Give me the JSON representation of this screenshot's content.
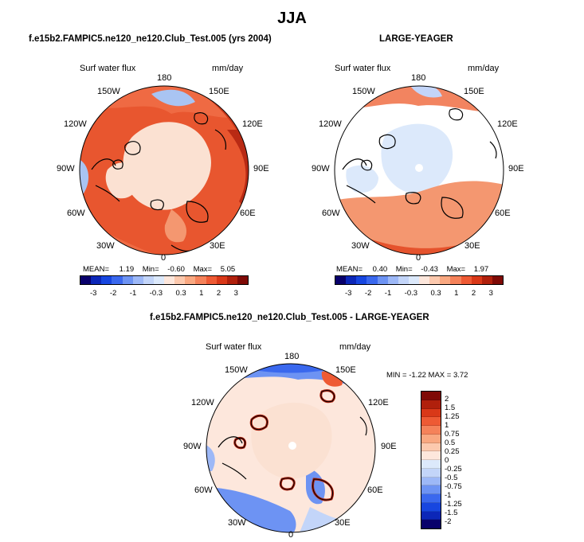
{
  "title": "JJA",
  "colors": {
    "scale": [
      "#08006b",
      "#0c27b8",
      "#1746e0",
      "#3a68ee",
      "#6d93f3",
      "#9db8f7",
      "#c3d5f9",
      "#dce9fb",
      "#fde7dc",
      "#fcc9ae",
      "#f9a881",
      "#f5825a",
      "#ee5a34",
      "#d93818",
      "#b0200c",
      "#7f0a06"
    ],
    "ocean_light": "#fbe1d2",
    "land_red": "#e2502a"
  },
  "panel_left": {
    "title": "f.e15b2.FAMPIC5.ne120_ne120.Club_Test.005 (yrs 2004)",
    "variable": "Surf water flux",
    "units": "mm/day",
    "stats": {
      "mean_label": "MEAN=",
      "mean": "1.19",
      "min_label": "Min=",
      "min": "-0.60",
      "max_label": "Max=",
      "max": "5.05"
    }
  },
  "panel_right": {
    "title": "LARGE-YEAGER",
    "variable": "Surf water flux",
    "units": "mm/day",
    "stats": {
      "mean_label": "MEAN=",
      "mean": "0.40",
      "min_label": "Min=",
      "min": "-0.43",
      "max_label": "Max=",
      "max": "1.97"
    }
  },
  "colorbar_ticks": [
    "-3",
    "-2",
    "-1",
    "-0.3",
    "0.3",
    "1",
    "2",
    "3"
  ],
  "panel_diff": {
    "title": "f.e15b2.FAMPIC5.ne120_ne120.Club_Test.005 - LARGE-YEAGER",
    "variable": "Surf water flux",
    "units": "mm/day",
    "minmax_text": "MIN = -1.22 MAX = 3.72",
    "legend_ticks": [
      "2",
      "1.5",
      "1.25",
      "1",
      "0.75",
      "0.5",
      "0.25",
      "0",
      "-0.25",
      "-0.5",
      "-0.75",
      "-1",
      "-1.25",
      "-1.5",
      "-2"
    ]
  },
  "longitude_labels": {
    "lon180": "180",
    "lon150w": "150W",
    "lon150e": "150E",
    "lon120w": "120W",
    "lon120e": "120E",
    "lon90w": "90W",
    "lon90e": "90E",
    "lon60w": "60W",
    "lon60e": "60E",
    "lon30w": "30W",
    "lon30e": "30E",
    "lon0": "0"
  }
}
